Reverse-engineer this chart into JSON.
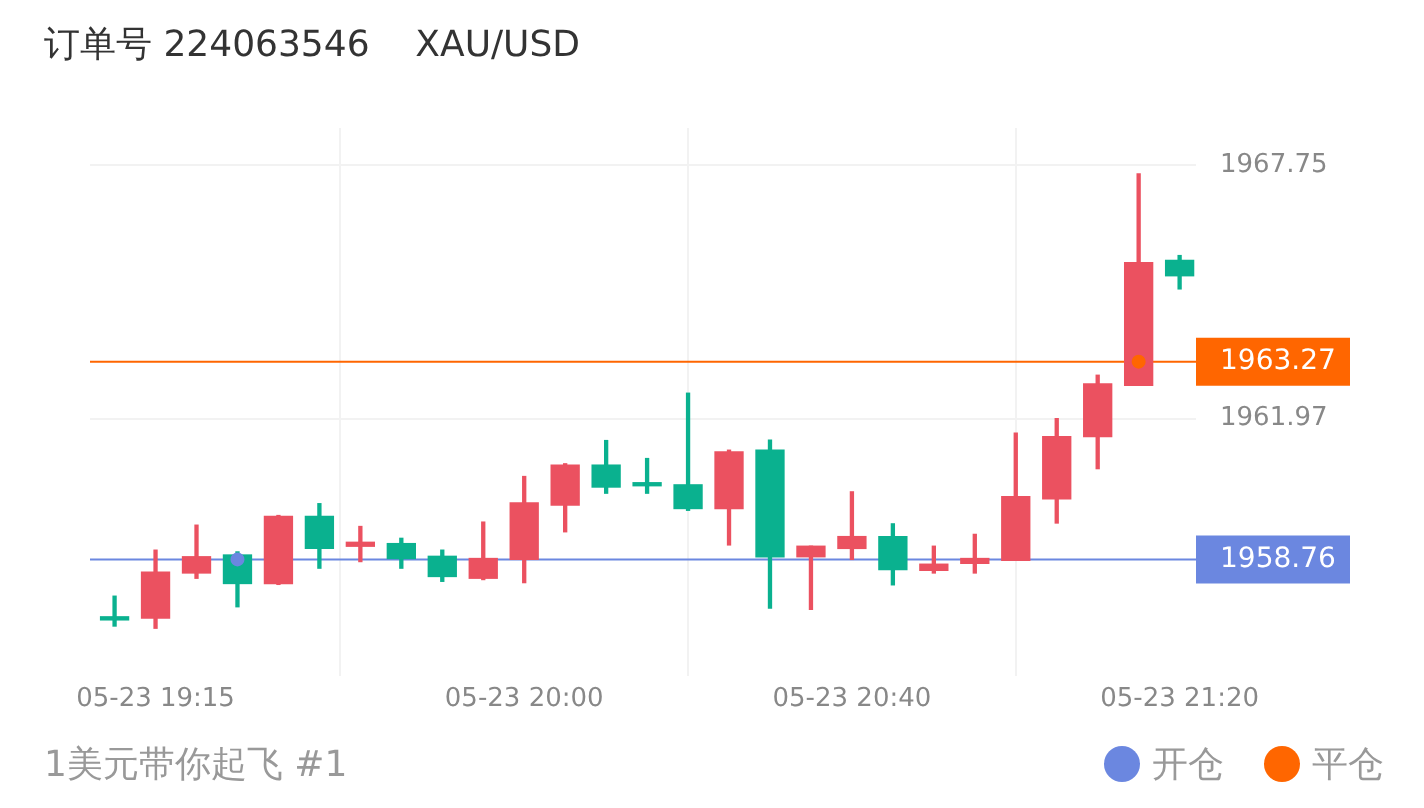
{
  "chart_data": {
    "type": "candlestick",
    "title": "订单号 224063546    XAU/USD",
    "x": [
      "--05-23T19:10",
      "--05-23T19:15",
      "--05-23T19:20",
      "--05-23T19:25",
      "--05-23T19:30",
      "--05-23T19:35",
      "--05-23T19:40",
      "--05-23T19:45",
      "--05-23T19:50",
      "--05-23T19:55",
      "--05-23T20:00",
      "--05-23T20:05",
      "--05-23T20:10",
      "--05-23T20:15",
      "--05-23T20:20",
      "--05-23T20:25",
      "--05-23T20:30",
      "--05-23T20:35",
      "--05-23T20:40",
      "--05-23T20:45",
      "--05-23T20:50",
      "--05-23T20:55",
      "--05-23T21:00",
      "--05-23T21:05",
      "--05-23T21:10",
      "--05-23T21:15",
      "--05-23T21:20"
    ],
    "ohlc": [
      [
        1957.38,
        1957.92,
        1957.24,
        1957.45
      ],
      [
        1958.47,
        1958.97,
        1957.19,
        1957.42
      ],
      [
        1958.82,
        1959.54,
        1958.33,
        1958.45
      ],
      [
        1958.21,
        1958.93,
        1957.68,
        1958.86
      ],
      [
        1959.74,
        1959.76,
        1958.19,
        1958.21
      ],
      [
        1959.01,
        1960.03,
        1958.56,
        1959.74
      ],
      [
        1959.15,
        1959.51,
        1958.71,
        1959.06
      ],
      [
        1958.78,
        1959.24,
        1958.56,
        1959.12
      ],
      [
        1958.37,
        1958.97,
        1958.26,
        1958.83
      ],
      [
        1958.78,
        1959.61,
        1958.3,
        1958.33
      ],
      [
        1960.05,
        1960.65,
        1958.23,
        1958.76
      ],
      [
        1960.91,
        1960.94,
        1959.39,
        1960.0
      ],
      [
        1960.41,
        1961.47,
        1960.27,
        1960.91
      ],
      [
        1960.44,
        1961.06,
        1960.27,
        1960.5
      ],
      [
        1959.92,
        1962.55,
        1959.88,
        1960.46
      ],
      [
        1961.21,
        1961.25,
        1959.09,
        1959.92
      ],
      [
        1958.82,
        1961.48,
        1957.65,
        1961.25
      ],
      [
        1959.06,
        1959.06,
        1957.62,
        1958.82
      ],
      [
        1959.28,
        1960.3,
        1958.76,
        1959.01
      ],
      [
        1958.53,
        1959.57,
        1958.18,
        1959.28
      ],
      [
        1958.65,
        1959.06,
        1958.45,
        1958.51
      ],
      [
        1958.78,
        1959.33,
        1958.45,
        1958.67
      ],
      [
        1960.19,
        1961.64,
        1958.74,
        1958.74
      ],
      [
        1961.56,
        1961.97,
        1959.59,
        1960.14
      ],
      [
        1962.76,
        1962.96,
        1960.83,
        1961.56
      ],
      [
        1965.53,
        1967.55,
        1962.73,
        1962.73
      ],
      [
        1965.23,
        1965.69,
        1964.93,
        1965.58
      ]
    ],
    "colors": [
      "#0ab18f",
      "#eb5160",
      "#eb5160",
      "#0ab18f",
      "#eb5160",
      "#0ab18f",
      "#eb5160",
      "#0ab18f",
      "#0ab18f",
      "#eb5160",
      "#eb5160",
      "#eb5160",
      "#0ab18f",
      "#0ab18f",
      "#0ab18f",
      "#eb5160",
      "#0ab18f",
      "#eb5160",
      "#eb5160",
      "#0ab18f",
      "#eb5160",
      "#eb5160",
      "#eb5160",
      "#eb5160",
      "#eb5160",
      "#eb5160",
      "#0ab18f"
    ],
    "series": [
      {
        "type": "scatter",
        "name": "开仓",
        "color": "#6b87e0",
        "x": [
          "--05-23T19:25"
        ],
        "values": [
          1958.76
        ]
      },
      {
        "type": "scatter",
        "name": "平仓",
        "color": "#ff6600",
        "x": [
          "--05-23T21:15"
        ],
        "values": [
          1963.27
        ]
      }
    ],
    "marker": "circle",
    "xlim": [
      "--05-23T19:07",
      "--05-23T21:22"
    ],
    "xticks": [
      {
        "value": "--05-23T19:15",
        "label": "05-23 19:15"
      },
      {
        "value": "--05-23T20:00",
        "label": "05-23 20:00"
      },
      {
        "value": "--05-23T20:40",
        "label": "05-23 20:40"
      },
      {
        "value": "--05-23T21:20",
        "label": "05-23 21:20"
      }
    ],
    "ylim": [
      1956.1,
      1968.6
    ],
    "yticks": [
      1961.97,
      1967.75
    ],
    "ref_lines": [
      {
        "axis": "y",
        "value": 1963.27,
        "label": "1963.27",
        "color": "#ff6600"
      },
      {
        "axis": "y",
        "value": 1958.76,
        "label": "1958.76",
        "color": "#6b87e0"
      }
    ],
    "grid": true,
    "legend": "bottom right",
    "annotations": [
      "1美元带你起飞 #1"
    ]
  }
}
